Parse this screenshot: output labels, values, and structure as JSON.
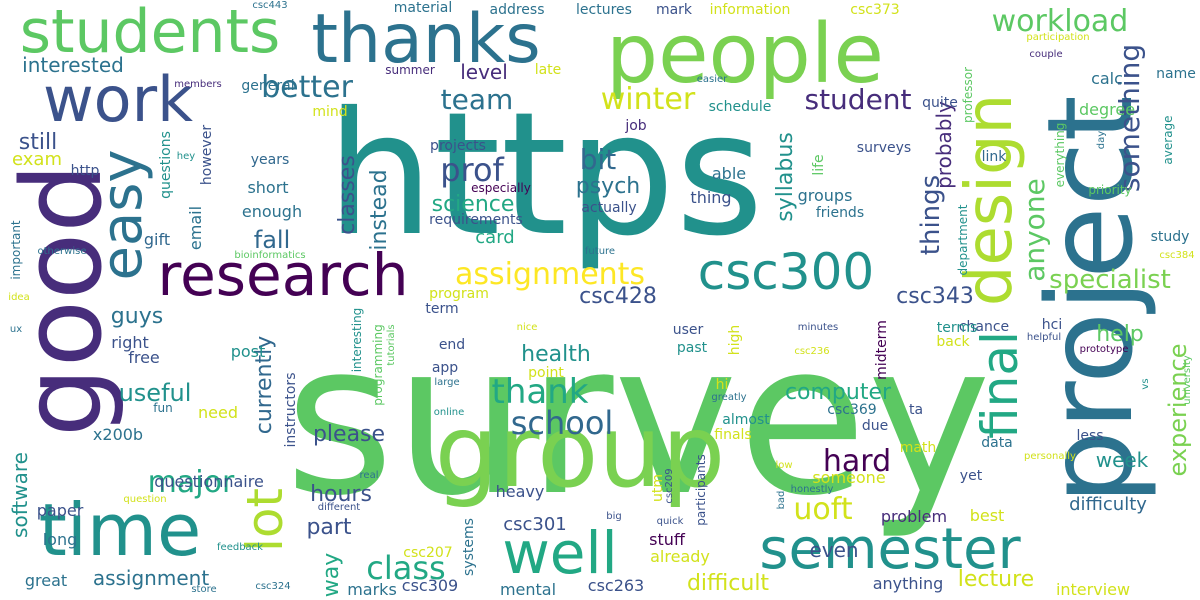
{
  "words": [
    {
      "text": "survey",
      "color": "#5cc863"
    },
    {
      "text": "https",
      "color": "#21918c"
    },
    {
      "text": "project",
      "color": "#2c728e"
    },
    {
      "text": "good",
      "color": "#472d7b"
    },
    {
      "text": "group",
      "color": "#7ad151"
    },
    {
      "text": "people",
      "color": "#7ad151"
    },
    {
      "text": "thanks",
      "color": "#2c728e"
    },
    {
      "text": "students",
      "color": "#5cc863"
    },
    {
      "text": "time",
      "color": "#21918c"
    },
    {
      "text": "work",
      "color": "#3b528b"
    },
    {
      "text": "design",
      "color": "#addc30"
    },
    {
      "text": "research",
      "color": "#440154"
    },
    {
      "text": "well",
      "color": "#22a884"
    },
    {
      "text": "semester",
      "color": "#21918c"
    },
    {
      "text": "easy",
      "color": "#2c728e"
    },
    {
      "text": "csc300",
      "color": "#21918c"
    },
    {
      "text": "final",
      "color": "#22a884"
    },
    {
      "text": "lot",
      "color": "#addc30"
    },
    {
      "text": "workload",
      "color": "#5cc863"
    },
    {
      "text": "assignments",
      "color": "#fde725"
    },
    {
      "text": "better",
      "color": "#2c728e"
    },
    {
      "text": "winter",
      "color": "#d2e21b"
    },
    {
      "text": "team",
      "color": "#2c728e"
    },
    {
      "text": "student",
      "color": "#472d7b"
    },
    {
      "text": "prof",
      "color": "#3b528b"
    },
    {
      "text": "something",
      "color": "#3b528b"
    },
    {
      "text": "anyone",
      "color": "#5cc863"
    },
    {
      "text": "things",
      "color": "#3b528b"
    },
    {
      "text": "experience",
      "color": "#7ad151"
    },
    {
      "text": "specialist",
      "color": "#7ad151"
    },
    {
      "text": "class",
      "color": "#22a884"
    },
    {
      "text": "school",
      "color": "#31688e"
    },
    {
      "text": "thank",
      "color": "#22a884"
    },
    {
      "text": "major",
      "color": "#22a884"
    },
    {
      "text": "uoft",
      "color": "#d2e21b"
    },
    {
      "text": "hard",
      "color": "#440154"
    },
    {
      "text": "science",
      "color": "#22a884"
    },
    {
      "text": "bit",
      "color": "#31688e"
    },
    {
      "text": "psych",
      "color": "#2c728e"
    },
    {
      "text": "classes",
      "color": "#3b528b"
    },
    {
      "text": "instead",
      "color": "#2c728e"
    },
    {
      "text": "syllabus",
      "color": "#21918c"
    },
    {
      "text": "probably",
      "color": "#472d7b"
    },
    {
      "text": "csc428",
      "color": "#3b528b"
    },
    {
      "text": "csc343",
      "color": "#3b528b"
    },
    {
      "text": "fall",
      "color": "#31688e"
    },
    {
      "text": "level",
      "color": "#472d7b"
    },
    {
      "text": "interested",
      "color": "#2c728e"
    },
    {
      "text": "still",
      "color": "#3b528b"
    },
    {
      "text": "exam",
      "color": "#d2e21b"
    },
    {
      "text": "currently",
      "color": "#31688e"
    },
    {
      "text": "useful",
      "color": "#21918c"
    },
    {
      "text": "guys",
      "color": "#2c728e"
    },
    {
      "text": "health",
      "color": "#21918c"
    },
    {
      "text": "computer",
      "color": "#22a884"
    },
    {
      "text": "please",
      "color": "#3b528b"
    },
    {
      "text": "hours",
      "color": "#3b528b"
    },
    {
      "text": "part",
      "color": "#3b528b"
    },
    {
      "text": "way",
      "color": "#22a884"
    },
    {
      "text": "even",
      "color": "#3b528b"
    },
    {
      "text": "difficult",
      "color": "#d2e21b"
    },
    {
      "text": "assignment",
      "color": "#2c728e"
    },
    {
      "text": "lecture",
      "color": "#d2e21b"
    },
    {
      "text": "software",
      "color": "#21918c"
    },
    {
      "text": "card",
      "color": "#22a884"
    },
    {
      "text": "help",
      "color": "#5cc863"
    },
    {
      "text": "week",
      "color": "#21918c"
    },
    {
      "text": "csc301",
      "color": "#3b528b"
    },
    {
      "text": "csc263",
      "color": "#3b528b"
    },
    {
      "text": "csc309",
      "color": "#3b528b"
    },
    {
      "text": "csc207",
      "color": "#d2e21b"
    },
    {
      "text": "csc369",
      "color": "#2c728e"
    },
    {
      "text": "difficulty",
      "color": "#31688e"
    },
    {
      "text": "interview",
      "color": "#d2e21b"
    },
    {
      "text": "anything",
      "color": "#3b528b"
    },
    {
      "text": "best",
      "color": "#d2e21b"
    },
    {
      "text": "problem",
      "color": "#472d7b"
    },
    {
      "text": "someone",
      "color": "#d2e21b"
    },
    {
      "text": "already",
      "color": "#d2e21b"
    },
    {
      "text": "stuff",
      "color": "#440154"
    },
    {
      "text": "mental",
      "color": "#2c728e"
    },
    {
      "text": "marks",
      "color": "#2c728e"
    },
    {
      "text": "heavy",
      "color": "#3b528b"
    },
    {
      "text": "great",
      "color": "#2c728e"
    },
    {
      "text": "long",
      "color": "#2c728e"
    },
    {
      "text": "paper",
      "color": "#3b528b"
    },
    {
      "text": "questionnaire",
      "color": "#3b528b"
    },
    {
      "text": "x200b",
      "color": "#2c728e"
    },
    {
      "text": "need",
      "color": "#d2e21b"
    },
    {
      "text": "post",
      "color": "#21918c"
    },
    {
      "text": "free",
      "color": "#3b528b"
    },
    {
      "text": "right",
      "color": "#3b528b"
    },
    {
      "text": "fun",
      "color": "#2c728e"
    },
    {
      "text": "gift",
      "color": "#31688e"
    },
    {
      "text": "email",
      "color": "#2c728e"
    },
    {
      "text": "enough",
      "color": "#2c728e"
    },
    {
      "text": "short",
      "color": "#2c728e"
    },
    {
      "text": "years",
      "color": "#31688e"
    },
    {
      "text": "http",
      "color": "#3b528b"
    },
    {
      "text": "however",
      "color": "#3b528b"
    },
    {
      "text": "questions",
      "color": "#21918c"
    },
    {
      "text": "hey",
      "color": "#21918c"
    },
    {
      "text": "especially",
      "color": "#440154"
    },
    {
      "text": "requirements",
      "color": "#3b528b"
    },
    {
      "text": "projects",
      "color": "#3b528b"
    },
    {
      "text": "actually",
      "color": "#3b528b"
    },
    {
      "text": "thing",
      "color": "#3b528b"
    },
    {
      "text": "able",
      "color": "#2c728e"
    },
    {
      "text": "groups",
      "color": "#2c728e"
    },
    {
      "text": "friends",
      "color": "#2c728e"
    },
    {
      "text": "surveys",
      "color": "#3b528b"
    },
    {
      "text": "job",
      "color": "#472d7b"
    },
    {
      "text": "life",
      "color": "#5cc863"
    },
    {
      "text": "link",
      "color": "#31688e"
    },
    {
      "text": "department",
      "color": "#21918c"
    },
    {
      "text": "professor",
      "color": "#5cc863"
    },
    {
      "text": "everything",
      "color": "#5cc863"
    },
    {
      "text": "degree",
      "color": "#5cc863"
    },
    {
      "text": "study",
      "color": "#2c728e"
    },
    {
      "text": "average",
      "color": "#21918c"
    },
    {
      "text": "priority",
      "color": "#5cc863"
    },
    {
      "text": "day",
      "color": "#2c728e"
    },
    {
      "text": "calc",
      "color": "#2c728e"
    },
    {
      "text": "quite",
      "color": "#3b528b"
    },
    {
      "text": "schedule",
      "color": "#21918c"
    },
    {
      "text": "name",
      "color": "#2c728e"
    },
    {
      "text": "couple",
      "color": "#472d7b"
    },
    {
      "text": "participation",
      "color": "#d2e21b"
    },
    {
      "text": "easier",
      "color": "#2c728e"
    },
    {
      "text": "csc373",
      "color": "#d2e21b"
    },
    {
      "text": "information",
      "color": "#d2e21b"
    },
    {
      "text": "mark",
      "color": "#3b528b"
    },
    {
      "text": "lectures",
      "color": "#2c728e"
    },
    {
      "text": "address",
      "color": "#2c728e"
    },
    {
      "text": "material",
      "color": "#2c728e"
    },
    {
      "text": "csc443",
      "color": "#2c728e"
    },
    {
      "text": "general",
      "color": "#2c728e"
    },
    {
      "text": "members",
      "color": "#472d7b"
    },
    {
      "text": "summer",
      "color": "#472d7b"
    },
    {
      "text": "mind",
      "color": "#d2e21b"
    },
    {
      "text": "late",
      "color": "#d2e21b"
    },
    {
      "text": "bioinformatics",
      "color": "#5cc863"
    },
    {
      "text": "future",
      "color": "#2c728e"
    },
    {
      "text": "otherwise",
      "color": "#2c728e"
    },
    {
      "text": "important",
      "color": "#2c728e"
    },
    {
      "text": "program",
      "color": "#d2e21b"
    },
    {
      "text": "term",
      "color": "#3b528b"
    },
    {
      "text": "nice",
      "color": "#d2e21b"
    },
    {
      "text": "minutes",
      "color": "#3b528b"
    },
    {
      "text": "chance",
      "color": "#3b528b"
    },
    {
      "text": "terms",
      "color": "#21918c"
    },
    {
      "text": "back",
      "color": "#d2e21b"
    },
    {
      "text": "hci",
      "color": "#3b528b"
    },
    {
      "text": "csc384",
      "color": "#d2e21b"
    },
    {
      "text": "idea",
      "color": "#d2e21b"
    },
    {
      "text": "ux",
      "color": "#2c728e"
    },
    {
      "text": "end",
      "color": "#3b528b"
    },
    {
      "text": "app",
      "color": "#3b528b"
    },
    {
      "text": "large",
      "color": "#2c728e"
    },
    {
      "text": "user",
      "color": "#3b528b"
    },
    {
      "text": "past",
      "color": "#21918c"
    },
    {
      "text": "point",
      "color": "#d2e21b"
    },
    {
      "text": "interesting",
      "color": "#21918c"
    },
    {
      "text": "programming",
      "color": "#5cc863"
    },
    {
      "text": "tutorials",
      "color": "#5cc863"
    },
    {
      "text": "instructors",
      "color": "#3b528b"
    },
    {
      "text": "high",
      "color": "#d2e21b"
    },
    {
      "text": "midterm",
      "color": "#440154"
    },
    {
      "text": "csc236",
      "color": "#d2e21b"
    },
    {
      "text": "prototype",
      "color": "#440154"
    },
    {
      "text": "helpful",
      "color": "#3b528b"
    },
    {
      "text": "university",
      "color": "#5cc863"
    },
    {
      "text": "vs",
      "color": "#21918c"
    },
    {
      "text": "online",
      "color": "#21918c"
    },
    {
      "text": "hi",
      "color": "#d2e21b"
    },
    {
      "text": "greatly",
      "color": "#2c728e"
    },
    {
      "text": "almost",
      "color": "#21918c"
    },
    {
      "text": "finals",
      "color": "#d2e21b"
    },
    {
      "text": "due",
      "color": "#3b528b"
    },
    {
      "text": "ta",
      "color": "#3b528b"
    },
    {
      "text": "math",
      "color": "#d2e21b"
    },
    {
      "text": "data",
      "color": "#2c728e"
    },
    {
      "text": "yet",
      "color": "#3b528b"
    },
    {
      "text": "less",
      "color": "#3b528b"
    },
    {
      "text": "personally",
      "color": "#d2e21b"
    },
    {
      "text": "honestly",
      "color": "#2c728e"
    },
    {
      "text": "low",
      "color": "#d2e21b"
    },
    {
      "text": "bad",
      "color": "#2c728e"
    },
    {
      "text": "utm",
      "color": "#d2e21b"
    },
    {
      "text": "csc209",
      "color": "#3b528b"
    },
    {
      "text": "participants",
      "color": "#3b528b"
    },
    {
      "text": "big",
      "color": "#3b528b"
    },
    {
      "text": "quick",
      "color": "#3b528b"
    },
    {
      "text": "systems",
      "color": "#2c728e"
    },
    {
      "text": "real",
      "color": "#2c728e"
    },
    {
      "text": "different",
      "color": "#3b528b"
    },
    {
      "text": "question",
      "color": "#d2e21b"
    },
    {
      "text": "feedback",
      "color": "#21918c"
    },
    {
      "text": "store",
      "color": "#2c728e"
    },
    {
      "text": "csc324",
      "color": "#2c728e"
    }
  ]
}
